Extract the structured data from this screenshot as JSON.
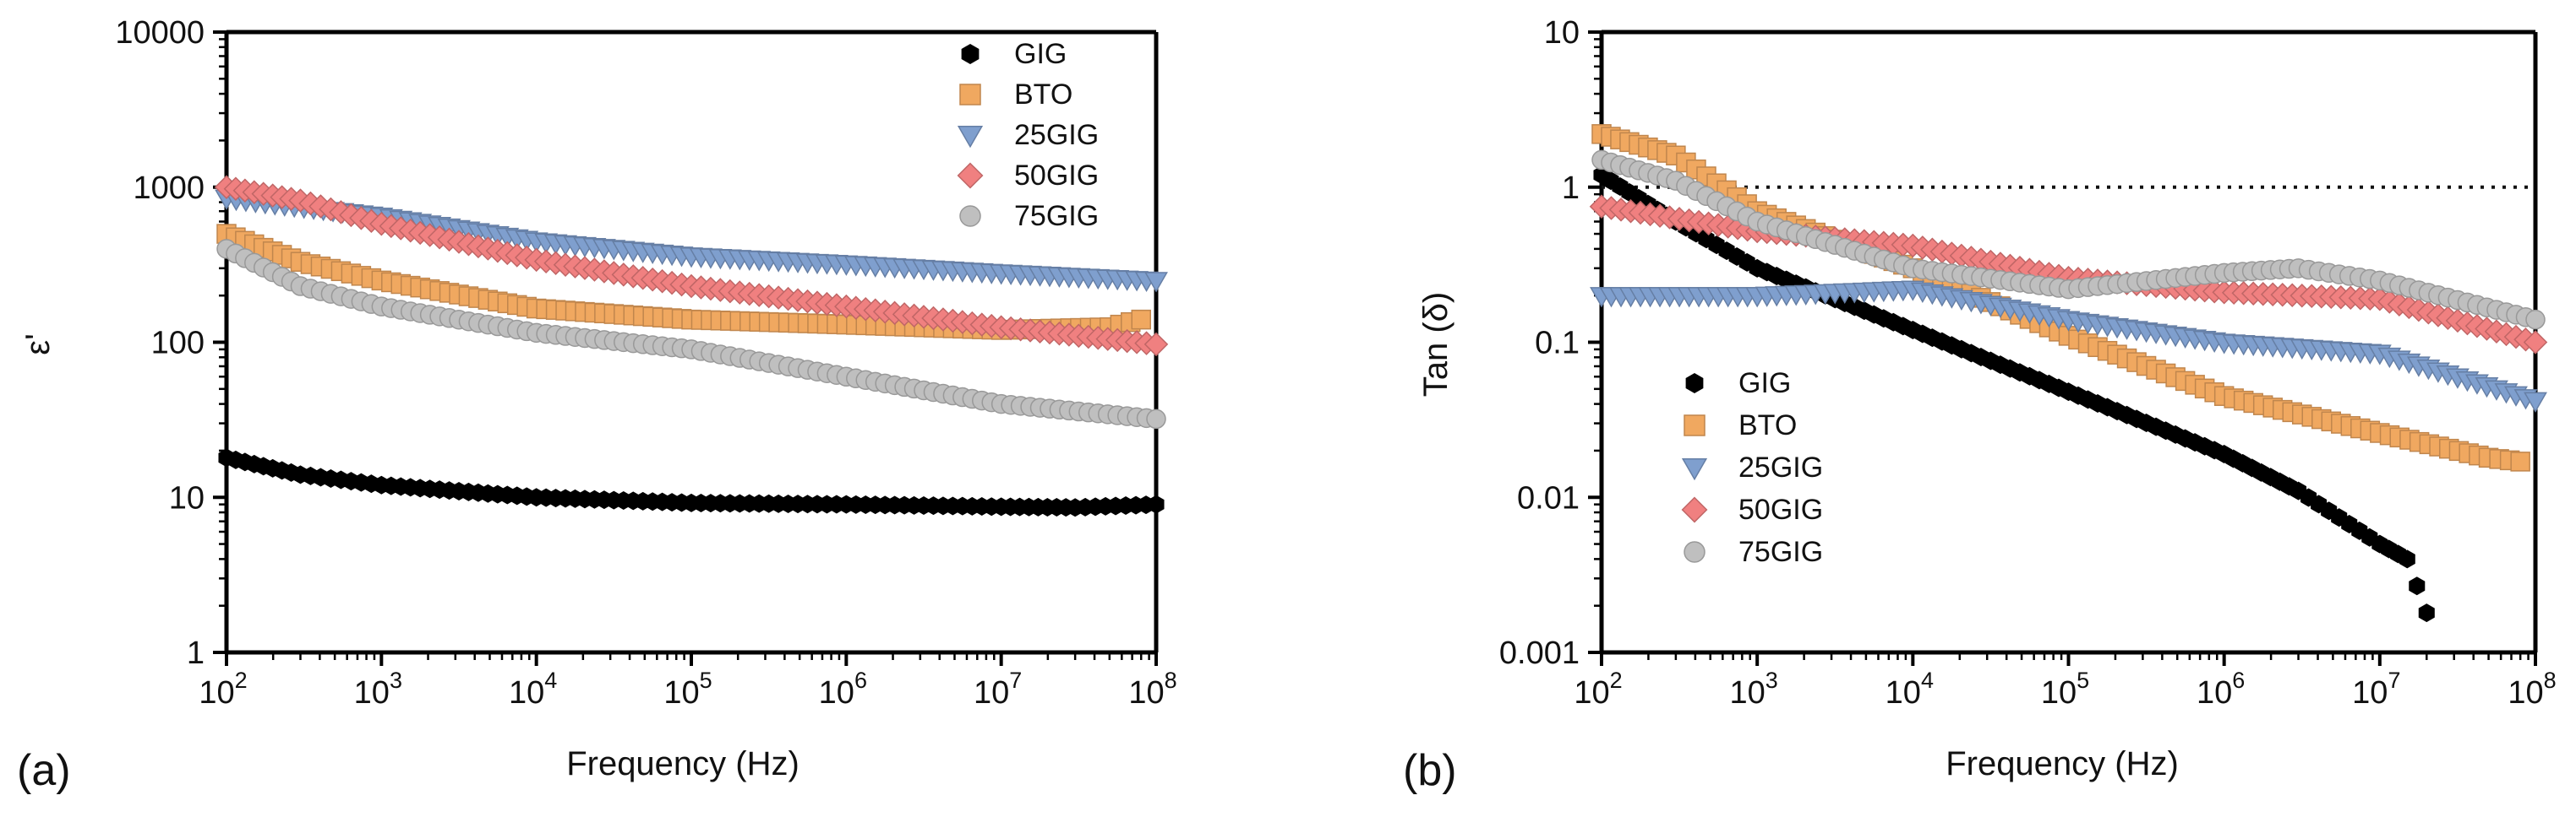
{
  "chart_data": [
    {
      "type": "scatter",
      "panel_label": "(a)",
      "xlabel": "Frequency (Hz)",
      "ylabel": "ε'",
      "xscale": "log",
      "yscale": "log",
      "xlim": [
        100,
        100000000
      ],
      "ylim": [
        1,
        10000
      ],
      "x_ticks": [
        {
          "value": 100,
          "base": "10",
          "exp": "2"
        },
        {
          "value": 1000,
          "base": "10",
          "exp": "3"
        },
        {
          "value": 10000,
          "base": "10",
          "exp": "4"
        },
        {
          "value": 100000,
          "base": "10",
          "exp": "5"
        },
        {
          "value": 1000000,
          "base": "10",
          "exp": "6"
        },
        {
          "value": 10000000,
          "base": "10",
          "exp": "7"
        },
        {
          "value": 100000000,
          "base": "10",
          "exp": "8"
        }
      ],
      "y_ticks": [
        {
          "value": 1,
          "label": "1"
        },
        {
          "value": 10,
          "label": "10"
        },
        {
          "value": 100,
          "label": "100"
        },
        {
          "value": 1000,
          "label": "1000"
        },
        {
          "value": 10000,
          "label": "10000"
        }
      ],
      "legend_position": "top-right",
      "reference_line": null,
      "series": [
        {
          "name": "GIG",
          "marker": "hexagon",
          "color": "#000000",
          "points": [
            [
              100,
              18
            ],
            [
              300,
              14
            ],
            [
              1000,
              12
            ],
            [
              10000,
              10
            ],
            [
              100000,
              9.2
            ],
            [
              1000000,
              9
            ],
            [
              10000000,
              8.7
            ],
            [
              30000000,
              8.6
            ],
            [
              100000000,
              9
            ]
          ]
        },
        {
          "name": "BTO",
          "marker": "square",
          "color": "#f0a860",
          "points": [
            [
              100,
              500
            ],
            [
              300,
              330
            ],
            [
              1000,
              250
            ],
            [
              10000,
              165
            ],
            [
              100000,
              140
            ],
            [
              1000000,
              130
            ],
            [
              10000000,
              120
            ],
            [
              50000000,
              125
            ],
            [
              80000000,
              140
            ]
          ]
        },
        {
          "name": "25GIG",
          "marker": "triangle-down",
          "color": "#7f9fce",
          "points": [
            [
              100,
              850
            ],
            [
              1000,
              650
            ],
            [
              10000,
              450
            ],
            [
              100000,
              360
            ],
            [
              1000000,
              320
            ],
            [
              10000000,
              280
            ],
            [
              100000000,
              250
            ]
          ]
        },
        {
          "name": "50GIG",
          "marker": "diamond",
          "color": "#f08080",
          "points": [
            [
              100,
              1000
            ],
            [
              300,
              820
            ],
            [
              1000,
              580
            ],
            [
              10000,
              340
            ],
            [
              100000,
              230
            ],
            [
              1000000,
              170
            ],
            [
              10000000,
              125
            ],
            [
              100000000,
              97
            ]
          ]
        },
        {
          "name": "75GIG",
          "marker": "circle",
          "color": "#bfbfbf",
          "points": [
            [
              100,
              400
            ],
            [
              300,
              230
            ],
            [
              1000,
              170
            ],
            [
              10000,
              115
            ],
            [
              100000,
              90
            ],
            [
              1000000,
              60
            ],
            [
              10000000,
              40
            ],
            [
              100000000,
              32
            ]
          ]
        }
      ]
    },
    {
      "type": "scatter",
      "panel_label": "(b)",
      "xlabel": "Frequency (Hz)",
      "ylabel": "Tan (δ)",
      "xscale": "log",
      "yscale": "log",
      "xlim": [
        100,
        100000000
      ],
      "ylim": [
        0.001,
        10
      ],
      "x_ticks": [
        {
          "value": 100,
          "base": "10",
          "exp": "2"
        },
        {
          "value": 1000,
          "base": "10",
          "exp": "3"
        },
        {
          "value": 10000,
          "base": "10",
          "exp": "4"
        },
        {
          "value": 100000,
          "base": "10",
          "exp": "5"
        },
        {
          "value": 1000000,
          "base": "10",
          "exp": "6"
        },
        {
          "value": 10000000,
          "base": "10",
          "exp": "7"
        },
        {
          "value": 100000000,
          "base": "10",
          "exp": "8"
        }
      ],
      "y_ticks": [
        {
          "value": 0.001,
          "label": "0.001"
        },
        {
          "value": 0.01,
          "label": "0.01"
        },
        {
          "value": 0.1,
          "label": "0.1"
        },
        {
          "value": 1,
          "label": "1"
        },
        {
          "value": 10,
          "label": "10"
        }
      ],
      "legend_position": "center-left",
      "reference_line": {
        "y": 1,
        "style": "dotted"
      },
      "series": [
        {
          "name": "GIG",
          "marker": "hexagon",
          "color": "#000000",
          "points": [
            [
              100,
              1.2
            ],
            [
              300,
              0.6
            ],
            [
              1000,
              0.3
            ],
            [
              10000,
              0.12
            ],
            [
              100000,
              0.048
            ],
            [
              1000000,
              0.019
            ],
            [
              3000000,
              0.011
            ],
            [
              10000000,
              0.005
            ],
            [
              15000000,
              0.004
            ],
            [
              20000000,
              0.0018
            ]
          ]
        },
        {
          "name": "BTO",
          "marker": "square",
          "color": "#f0a860",
          "points": [
            [
              100,
              2.2
            ],
            [
              300,
              1.6
            ],
            [
              1000,
              0.7
            ],
            [
              10000,
              0.3
            ],
            [
              100000,
              0.11
            ],
            [
              1000000,
              0.045
            ],
            [
              10000000,
              0.026
            ],
            [
              50000000,
              0.018
            ],
            [
              80000000,
              0.017
            ]
          ]
        },
        {
          "name": "25GIG",
          "marker": "triangle-down",
          "color": "#7f9fce",
          "points": [
            [
              100,
              0.2
            ],
            [
              1000,
              0.2
            ],
            [
              10000,
              0.22
            ],
            [
              100000,
              0.14
            ],
            [
              1000000,
              0.1
            ],
            [
              10000000,
              0.085
            ],
            [
              100000000,
              0.042
            ]
          ]
        },
        {
          "name": "50GIG",
          "marker": "diamond",
          "color": "#f08080",
          "points": [
            [
              100,
              0.75
            ],
            [
              1000,
              0.52
            ],
            [
              10000,
              0.42
            ],
            [
              100000,
              0.26
            ],
            [
              1000000,
              0.21
            ],
            [
              10000000,
              0.19
            ],
            [
              100000000,
              0.1
            ]
          ]
        },
        {
          "name": "75GIG",
          "marker": "circle",
          "color": "#bfbfbf",
          "points": [
            [
              100,
              1.5
            ],
            [
              300,
              1.1
            ],
            [
              1000,
              0.6
            ],
            [
              10000,
              0.3
            ],
            [
              100000,
              0.22
            ],
            [
              1000000,
              0.28
            ],
            [
              3000000,
              0.3
            ],
            [
              10000000,
              0.25
            ],
            [
              100000000,
              0.14
            ]
          ]
        }
      ]
    }
  ]
}
